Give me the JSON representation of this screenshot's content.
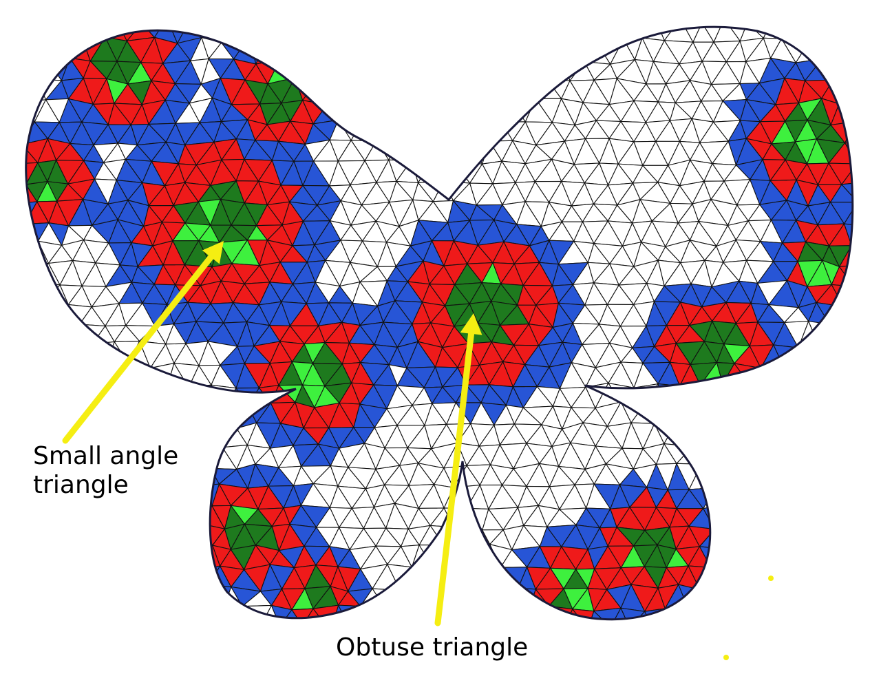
{
  "figure": {
    "colors": {
      "white_band": "#ffffff",
      "blue_band": "#2755d6",
      "red_band": "#ef1a1a",
      "dark_green_band": "#1e7a1e",
      "light_green_cell": "#3ef03e",
      "mesh_line": "#111111",
      "outline": "#1a1a3a",
      "arrow": "#f5ee12"
    },
    "annotations": [
      {
        "line1": "Small angle",
        "line2": "triangle"
      },
      {
        "text": "Obtuse triangle"
      }
    ]
  }
}
